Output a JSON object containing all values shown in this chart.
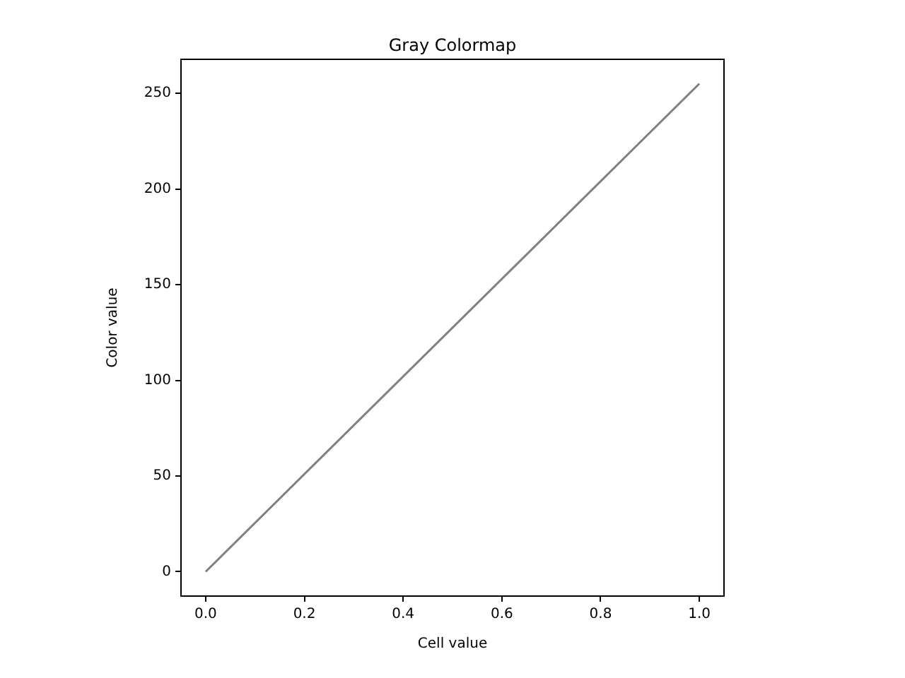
{
  "chart_data": {
    "type": "line",
    "title": "Gray Colormap",
    "xlabel": "Cell value",
    "ylabel": "Color value",
    "x": [
      0,
      1
    ],
    "series": [
      {
        "color": "#808080",
        "values": [
          0,
          255
        ]
      }
    ],
    "xlim": [
      -0.05,
      1.05
    ],
    "xticks": [
      {
        "value": 0,
        "label": "0.0"
      },
      {
        "value": 0.2,
        "label": "0.2"
      },
      {
        "value": 0.4,
        "label": "0.4"
      },
      {
        "value": 0.6,
        "label": "0.6"
      },
      {
        "value": 0.8,
        "label": "0.8"
      },
      {
        "value": 1,
        "label": "1.0"
      }
    ],
    "ylim": [
      -12.75,
      267.75
    ],
    "yticks": [
      0,
      50,
      100,
      150,
      200,
      250
    ],
    "grid": false,
    "legend": false,
    "marker": "none",
    "line_style": "solid"
  }
}
